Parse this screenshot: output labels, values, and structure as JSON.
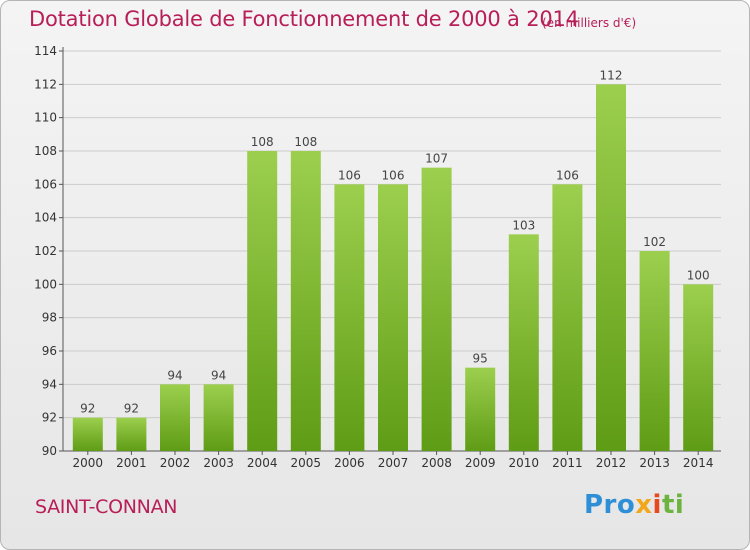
{
  "title": "Dotation Globale de Fonctionnement de 2000 à 2014",
  "subtitle": "(en milliers d'€)",
  "commune": "SAINT-CONNAN",
  "logo": {
    "p1": "Pro",
    "p2": "x",
    "p3": "i",
    "p4": "ti"
  },
  "colors": {
    "title": "#b81e58",
    "bar_light": "#9ccf4e",
    "bar_dark": "#5f9c15",
    "grid": "#cccccc"
  },
  "chart_data": {
    "type": "bar",
    "categories": [
      "2000",
      "2001",
      "2002",
      "2003",
      "2004",
      "2005",
      "2006",
      "2007",
      "2008",
      "2009",
      "2010",
      "2011",
      "2012",
      "2013",
      "2014"
    ],
    "values": [
      92,
      92,
      94,
      94,
      108,
      108,
      106,
      106,
      107,
      95,
      103,
      106,
      112,
      102,
      100
    ],
    "ylim": [
      90,
      114
    ],
    "yticks": [
      90,
      92,
      94,
      96,
      98,
      100,
      102,
      104,
      106,
      108,
      110,
      112,
      114
    ],
    "grid": true,
    "data_labels": true
  }
}
